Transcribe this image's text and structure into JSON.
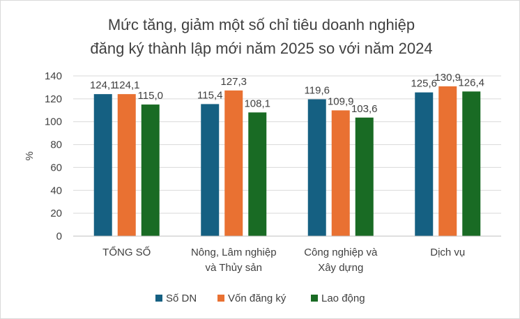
{
  "chart_data": {
    "type": "bar",
    "title": [
      "Mức tăng, giảm một số chỉ tiêu doanh nghiệp",
      "đăng ký thành lập mới năm 2025 so với năm 2024"
    ],
    "xlabel": "",
    "ylabel": "%",
    "ylim": [
      0,
      140
    ],
    "yticks": [
      0,
      20,
      40,
      60,
      80,
      100,
      120,
      140
    ],
    "grid": true,
    "legend_position": "bottom",
    "categories": [
      [
        "TỔNG SỐ"
      ],
      [
        "Nông, Lâm nghiệp",
        "và Thủy sản"
      ],
      [
        "Công nghiệp và",
        "Xây dựng"
      ],
      [
        "Dịch vụ"
      ]
    ],
    "series": [
      {
        "name": "Số DN",
        "color": "#156082",
        "values": [
          124.1,
          115.4,
          119.6,
          125.6
        ],
        "labels": [
          "124,1",
          "115,4",
          "119,6",
          "125,6"
        ]
      },
      {
        "name": "Vốn đăng ký",
        "color": "#E97132",
        "values": [
          124.1,
          127.3,
          109.9,
          130.9
        ],
        "labels": [
          "124,1",
          "127,3",
          "109,9",
          "130,9"
        ]
      },
      {
        "name": "Lao động",
        "color": "#196B24",
        "values": [
          115.0,
          108.1,
          103.6,
          126.4
        ],
        "labels": [
          "115,0",
          "108,1",
          "103,6",
          "126,4"
        ]
      }
    ]
  }
}
